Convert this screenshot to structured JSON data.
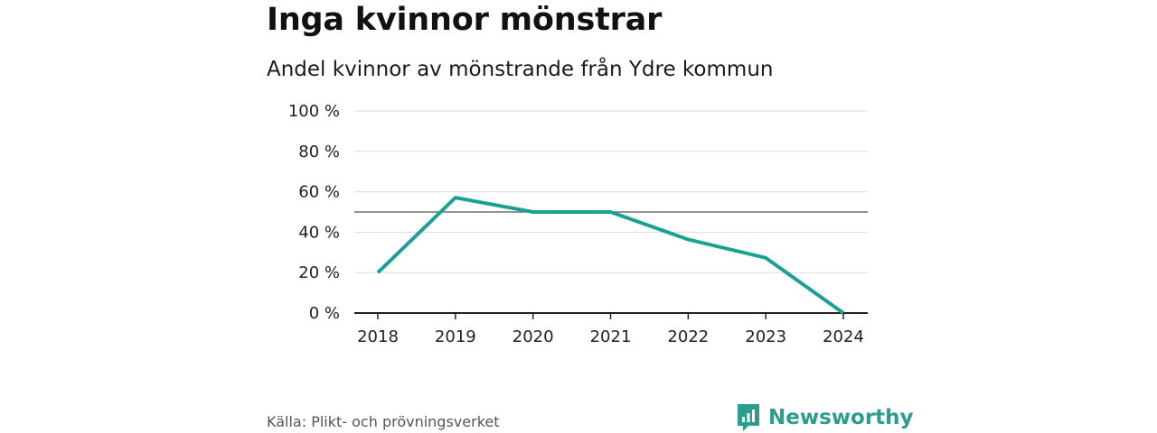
{
  "title": "Inga kvinnor mönstrar",
  "subtitle": "Andel kvinnor av mönstrande från Ydre kommun",
  "source": "Källa: Plikt- och prövningsverket",
  "brand": {
    "name": "Newsworthy",
    "icon": "newsworthy-logo-icon"
  },
  "colors": {
    "line": "#1aa193",
    "grid": "#dddddd",
    "reference": "#555555",
    "axis": "#222222",
    "brand": "#2c9c8c"
  },
  "chart_data": {
    "type": "line",
    "title": "Inga kvinnor mönstrar",
    "subtitle": "Andel kvinnor av mönstrande från Ydre kommun",
    "xlabel": "",
    "ylabel": "",
    "categories": [
      "2018",
      "2019",
      "2020",
      "2021",
      "2022",
      "2023",
      "2024"
    ],
    "series": [
      {
        "name": "Andel kvinnor",
        "values": [
          20,
          57.1,
          50,
          50,
          36.4,
          27.3,
          0
        ]
      }
    ],
    "ylim": [
      0,
      100
    ],
    "yticks": [
      0,
      20,
      40,
      60,
      80,
      100
    ],
    "ytick_labels": [
      "0 %",
      "20 %",
      "40 %",
      "60 %",
      "80 %",
      "100 %"
    ],
    "reference_line": 50,
    "grid": true
  }
}
